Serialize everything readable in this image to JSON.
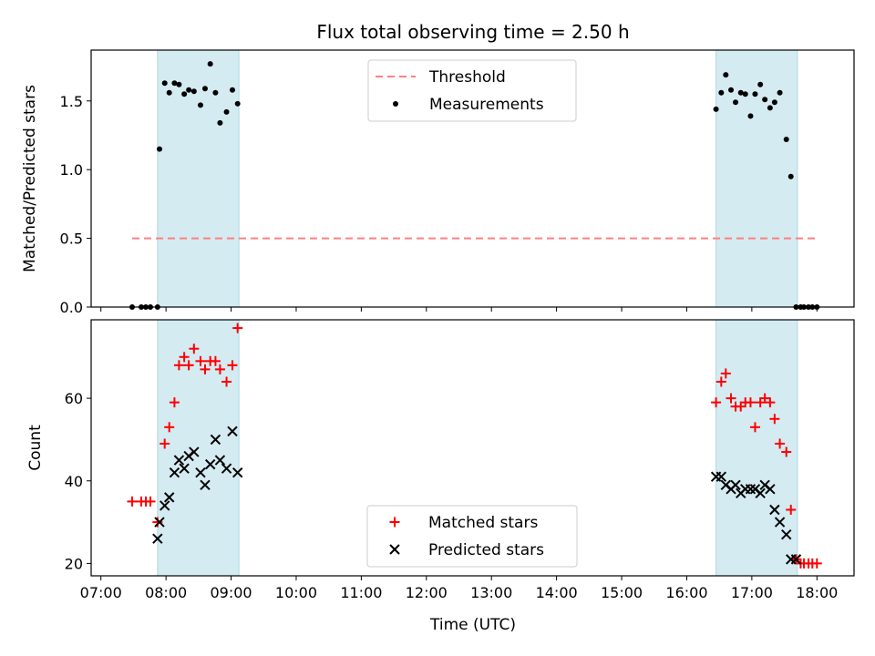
{
  "chart_data": {
    "type": "scatter",
    "title": "Flux total observing time = 2.50 h",
    "xlabel": "Time (UTC)",
    "x_unit": "hour of day (UTC)",
    "xlim": [
      6.85,
      18.57
    ],
    "x_ticks": [
      7,
      8,
      9,
      10,
      11,
      12,
      13,
      14,
      15,
      16,
      17,
      18
    ],
    "x_tick_labels": [
      "07:00",
      "08:00",
      "09:00",
      "10:00",
      "11:00",
      "12:00",
      "13:00",
      "14:00",
      "15:00",
      "16:00",
      "17:00",
      "18:00"
    ],
    "shaded_intervals": [
      [
        7.87,
        9.12
      ],
      [
        16.45,
        17.7
      ]
    ],
    "shade_color": "#add8e6",
    "panels": [
      {
        "ylabel": "Matched/Predicted stars",
        "ylim": [
          0,
          1.87
        ],
        "y_ticks": [
          0.0,
          0.5,
          1.0,
          1.5
        ],
        "y_tick_labels": [
          "0.0",
          "0.5",
          "1.0",
          "1.5"
        ],
        "legend": "top-center",
        "series": [
          {
            "name": "Threshold",
            "marker": "dashed-line",
            "color": "#ff8080",
            "x": [
              7.48,
              17.97
            ],
            "y": [
              0.5,
              0.5
            ]
          },
          {
            "name": "Measurements",
            "marker": "dot",
            "color": "#000000",
            "x": [
              7.48,
              7.62,
              7.69,
              7.76,
              7.87,
              7.9,
              7.98,
              8.05,
              8.13,
              8.2,
              8.28,
              8.35,
              8.43,
              8.53,
              8.6,
              8.68,
              8.76,
              8.83,
              8.93,
              9.02,
              9.1,
              16.45,
              16.53,
              16.6,
              16.68,
              16.75,
              16.83,
              16.9,
              16.98,
              17.05,
              17.13,
              17.2,
              17.28,
              17.35,
              17.43,
              17.53,
              17.6,
              17.68,
              17.75,
              17.8,
              17.87,
              17.93,
              18.0
            ],
            "y": [
              0.0,
              0.0,
              0.0,
              0.0,
              0.0,
              1.15,
              1.63,
              1.56,
              1.63,
              1.62,
              1.55,
              1.58,
              1.57,
              1.47,
              1.59,
              1.77,
              1.56,
              1.34,
              1.42,
              1.58,
              1.48,
              1.44,
              1.56,
              1.69,
              1.58,
              1.49,
              1.56,
              1.55,
              1.39,
              1.55,
              1.62,
              1.51,
              1.45,
              1.49,
              1.56,
              1.22,
              0.95,
              0.0,
              0.0,
              0.0,
              0.0,
              0.0,
              0.0
            ]
          }
        ]
      },
      {
        "ylabel": "Count",
        "ylim": [
          17,
          79
        ],
        "y_ticks": [
          20,
          40,
          60
        ],
        "y_tick_labels": [
          "20",
          "40",
          "60"
        ],
        "legend": "bottom-center",
        "series": [
          {
            "name": "Matched stars",
            "marker": "plus",
            "color": "#ff0000",
            "x": [
              7.48,
              7.62,
              7.69,
              7.76,
              7.87,
              7.98,
              8.05,
              8.13,
              8.2,
              8.28,
              8.35,
              8.43,
              8.53,
              8.6,
              8.68,
              8.76,
              8.83,
              8.93,
              9.02,
              9.1,
              16.45,
              16.53,
              16.6,
              16.68,
              16.75,
              16.83,
              16.9,
              16.98,
              17.05,
              17.13,
              17.2,
              17.28,
              17.35,
              17.43,
              17.53,
              17.6,
              17.68,
              17.75,
              17.8,
              17.87,
              17.93,
              18.0
            ],
            "y": [
              35,
              35,
              35,
              35,
              30,
              49,
              53,
              59,
              68,
              70,
              68,
              72,
              69,
              67,
              69,
              69,
              67,
              64,
              68,
              77,
              59,
              64,
              66,
              60,
              58,
              58,
              59,
              59,
              53,
              59,
              60,
              59,
              55,
              49,
              47,
              33,
              21,
              20,
              20,
              20,
              20,
              20
            ]
          },
          {
            "name": "Predicted stars",
            "marker": "x",
            "color": "#000000",
            "x": [
              7.87,
              7.9,
              7.98,
              8.05,
              8.13,
              8.2,
              8.28,
              8.35,
              8.43,
              8.53,
              8.6,
              8.68,
              8.76,
              8.83,
              8.93,
              9.02,
              9.1,
              16.45,
              16.53,
              16.6,
              16.68,
              16.75,
              16.83,
              16.9,
              16.98,
              17.05,
              17.13,
              17.2,
              17.28,
              17.35,
              17.43,
              17.53,
              17.6,
              17.68
            ],
            "y": [
              26,
              30,
              34,
              36,
              42,
              45,
              43,
              46,
              47,
              42,
              39,
              44,
              50,
              45,
              43,
              52,
              42,
              41,
              41,
              39,
              38,
              39,
              37,
              38,
              38,
              38,
              37,
              39,
              38,
              33,
              30,
              27,
              21,
              21
            ]
          }
        ]
      }
    ]
  }
}
